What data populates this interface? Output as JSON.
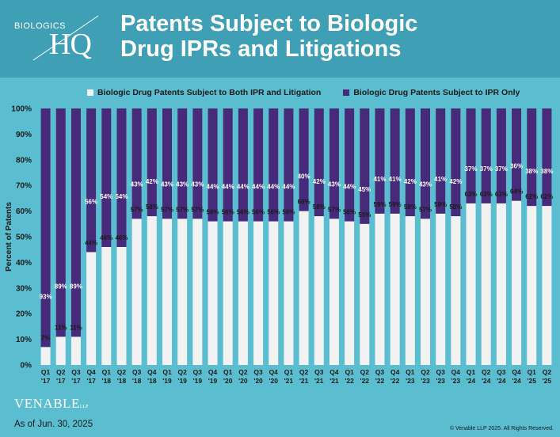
{
  "header": {
    "logo_text_small": "BIOLOGICS",
    "logo_text_large": "HQ",
    "title_line1": "Patents Subject to Biologic",
    "title_line2": "Drug IPRs and Litigations"
  },
  "colors": {
    "background": "#5bbdd0",
    "header": "#3f9fb4",
    "both_series": "#f2f2f2",
    "ipr_only_series": "#472a7a"
  },
  "footer": {
    "firm_logo": "VENABLE",
    "firm_logo_suffix": "LLP",
    "as_of": "As of Jun. 30, 2025",
    "copyright": "© Venable LLP 2025. All Rights Reserved."
  },
  "chart_data": {
    "type": "bar",
    "stacked": true,
    "ylabel": "Percent of Patents",
    "ylim": [
      0,
      100
    ],
    "y_ticks": [
      "0%",
      "10%",
      "20%",
      "30%",
      "40%",
      "50%",
      "60%",
      "70%",
      "80%",
      "90%",
      "100%"
    ],
    "legend_position": "top",
    "categories": [
      [
        "Q1",
        "'17"
      ],
      [
        "Q2",
        "'17"
      ],
      [
        "Q3",
        "'17"
      ],
      [
        "Q4",
        "'17"
      ],
      [
        "Q1",
        "'18"
      ],
      [
        "Q2",
        "'18"
      ],
      [
        "Q3",
        "'18"
      ],
      [
        "Q4",
        "'18"
      ],
      [
        "Q1",
        "'19"
      ],
      [
        "Q2",
        "'19"
      ],
      [
        "Q3",
        "'19"
      ],
      [
        "Q4",
        "'19"
      ],
      [
        "Q1",
        "'20"
      ],
      [
        "Q2",
        "'20"
      ],
      [
        "Q3",
        "'20"
      ],
      [
        "Q4",
        "'20"
      ],
      [
        "Q1",
        "'21"
      ],
      [
        "Q2",
        "'21"
      ],
      [
        "Q3",
        "'21"
      ],
      [
        "Q4",
        "'21"
      ],
      [
        "Q1",
        "'22"
      ],
      [
        "Q2",
        "'22"
      ],
      [
        "Q3",
        "'22"
      ],
      [
        "Q4",
        "'22"
      ],
      [
        "Q1",
        "'23"
      ],
      [
        "Q2",
        "'23"
      ],
      [
        "Q3",
        "'23"
      ],
      [
        "Q4",
        "'23"
      ],
      [
        "Q1",
        "'24"
      ],
      [
        "Q2",
        "'24"
      ],
      [
        "Q3",
        "'24"
      ],
      [
        "Q4",
        "'24"
      ],
      [
        "Q1",
        "'25"
      ],
      [
        "Q2",
        "'25"
      ]
    ],
    "series": [
      {
        "name": "Biologic Drug Patents Subject to Both IPR and Litigation",
        "values": [
          7,
          11,
          11,
          44,
          46,
          46,
          57,
          58,
          57,
          57,
          57,
          56,
          56,
          56,
          56,
          56,
          56,
          60,
          58,
          57,
          56,
          55,
          59,
          59,
          58,
          57,
          59,
          58,
          63,
          63,
          63,
          64,
          62,
          62
        ],
        "labels": [
          "7%",
          "11%",
          "11%",
          "44%",
          "46%",
          "46%",
          "57%",
          "58%",
          "57%",
          "57%",
          "57%",
          "56%",
          "56%",
          "56%",
          "56%",
          "56%",
          "56%",
          "60%",
          "58%",
          "57%",
          "56%",
          "55%",
          "59%",
          "59%",
          "58%",
          "57%",
          "59%",
          "58%",
          "63%",
          "63%",
          "63%",
          "64%",
          "62%",
          "62%"
        ]
      },
      {
        "name": "Biologic Drug Patents Subject to IPR Only",
        "values": [
          93,
          89,
          89,
          56,
          54,
          54,
          43,
          42,
          43,
          43,
          43,
          44,
          44,
          44,
          44,
          44,
          44,
          40,
          42,
          43,
          44,
          45,
          41,
          41,
          42,
          43,
          41,
          42,
          37,
          37,
          37,
          36,
          38,
          38
        ],
        "labels": [
          "93%",
          "89%",
          "89%",
          "56%",
          "54%",
          "54%",
          "43%",
          "42%",
          "43%",
          "43%",
          "43%",
          "44%",
          "44%",
          "44%",
          "44%",
          "44%",
          "44%",
          "40%",
          "42%",
          "43%",
          "44%",
          "45%",
          "41%",
          "41%",
          "42%",
          "43%",
          "41%",
          "42%",
          "37%",
          "37%",
          "37%",
          "36%",
          "38%",
          "38%"
        ]
      }
    ]
  }
}
